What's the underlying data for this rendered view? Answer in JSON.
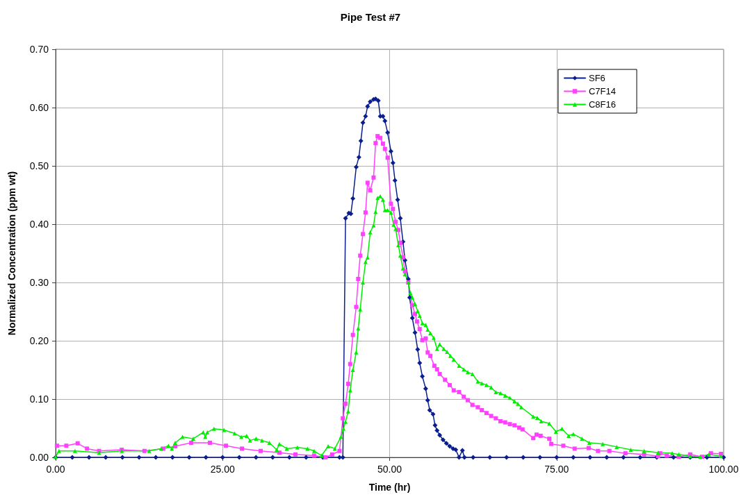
{
  "chart_data": {
    "type": "line",
    "title": "Pipe Test #7",
    "xlabel": "Time (hr)",
    "ylabel": "Normalized Concentration (ppm wt)",
    "xlim": [
      0,
      100
    ],
    "xticks": [
      {
        "value": 0,
        "label": "0.00"
      },
      {
        "value": 25,
        "label": "25.00"
      },
      {
        "value": 50,
        "label": "50.00"
      },
      {
        "value": 75,
        "label": "75.00"
      },
      {
        "value": 100,
        "label": "100.00"
      }
    ],
    "ylim": [
      0,
      0.7
    ],
    "yticks": [
      {
        "value": 0,
        "label": "0.00"
      },
      {
        "value": 0.1,
        "label": "0.10"
      },
      {
        "value": 0.2,
        "label": "0.20"
      },
      {
        "value": 0.3,
        "label": "0.30"
      },
      {
        "value": 0.4,
        "label": "0.40"
      },
      {
        "value": 0.5,
        "label": "0.50"
      },
      {
        "value": 0.6,
        "label": "0.60"
      },
      {
        "value": 0.7,
        "label": "0.70"
      }
    ],
    "grid": true,
    "legend": "top right",
    "line_style": "solid",
    "series": [
      {
        "name": "SF6",
        "color": "#0a1f8f",
        "marker": "diamond",
        "x": [
          0,
          2.5,
          5,
          7.5,
          10,
          12.5,
          15,
          17.5,
          20,
          22.5,
          25,
          27.5,
          30,
          32.5,
          35,
          37.5,
          40,
          42.5,
          43.0,
          43.4,
          43.9,
          44.2,
          44.5,
          45.0,
          45.4,
          45.7,
          46.0,
          46.4,
          46.7,
          47.1,
          47.6,
          47.9,
          48.3,
          48.6,
          49.0,
          49.3,
          49.7,
          50.2,
          50.5,
          50.8,
          51.2,
          51.6,
          52.0,
          52.3,
          52.8,
          53.0,
          53.4,
          53.8,
          54.2,
          54.5,
          54.9,
          55.4,
          55.7,
          56.0,
          56.5,
          56.8,
          57.1,
          57.5,
          58.0,
          58.5,
          59.0,
          59.5,
          59.9,
          60.4,
          60.9,
          61.2,
          62.5,
          65,
          67.5,
          70,
          72.5,
          75,
          77.5,
          80,
          82.5,
          85,
          87.5,
          90,
          92.5,
          95,
          97.5,
          100
        ],
        "values": [
          0,
          0,
          0,
          0,
          0,
          0,
          0,
          0,
          0,
          0,
          0,
          0,
          0,
          0,
          0,
          0,
          0,
          0,
          0,
          0.41,
          0.419,
          0.418,
          0.444,
          0.498,
          0.515,
          0.543,
          0.574,
          0.585,
          0.602,
          0.61,
          0.614,
          0.615,
          0.612,
          0.585,
          0.585,
          0.577,
          0.557,
          0.525,
          0.505,
          0.475,
          0.442,
          0.41,
          0.37,
          0.338,
          0.306,
          0.274,
          0.239,
          0.214,
          0.185,
          0.162,
          0.139,
          0.118,
          0.098,
          0.081,
          0.074,
          0.055,
          0.046,
          0.038,
          0.03,
          0.024,
          0.019,
          0.015,
          0.013,
          0,
          0.012,
          0,
          0,
          0,
          0,
          0,
          0,
          0,
          0,
          0,
          0,
          0,
          0,
          0,
          0,
          0,
          0,
          0
        ]
      },
      {
        "name": "C7F14",
        "color": "#ff40ff",
        "marker": "square",
        "x": [
          0.2,
          1.6,
          3.3,
          4.7,
          6.5,
          9.9,
          13.3,
          16.1,
          17.9,
          20.3,
          23.1,
          25.5,
          27.9,
          30.7,
          33.5,
          35.9,
          38.7,
          40.4,
          41.4,
          42.5,
          43.0,
          43.4,
          43.8,
          44.1,
          44.5,
          45.0,
          45.3,
          45.6,
          46.0,
          46.4,
          46.7,
          47.1,
          47.6,
          47.9,
          48.2,
          48.6,
          49.0,
          49.3,
          49.7,
          50.2,
          50.5,
          50.9,
          51.3,
          51.6,
          52.0,
          52.3,
          52.8,
          53.4,
          53.8,
          54.1,
          54.5,
          54.9,
          55.4,
          55.7,
          56.1,
          56.7,
          57.1,
          57.5,
          58.3,
          59.0,
          59.6,
          60.4,
          61.1,
          61.7,
          62.4,
          63.2,
          63.8,
          64.5,
          65.2,
          65.9,
          66.6,
          67.3,
          68.0,
          68.7,
          69.4,
          69.9,
          71.5,
          72.0,
          72.6,
          73.9,
          74.2,
          76.0,
          77.7,
          79.8,
          81.2,
          82.9,
          85.3,
          88.1,
          90.2,
          90.5,
          91.5,
          93.3,
          95.0,
          96.8,
          98.1,
          99.6
        ],
        "values": [
          0.02,
          0.02,
          0.024,
          0.015,
          0.011,
          0.013,
          0.011,
          0.015,
          0.019,
          0.025,
          0.025,
          0.02,
          0.015,
          0.011,
          0.008,
          0.005,
          0.003,
          0,
          0.005,
          0.011,
          0.067,
          0.092,
          0.126,
          0.16,
          0.21,
          0.258,
          0.306,
          0.346,
          0.383,
          0.42,
          0.471,
          0.458,
          0.48,
          0.539,
          0.551,
          0.548,
          0.538,
          0.529,
          0.514,
          0.435,
          0.426,
          0.404,
          0.39,
          0.368,
          0.343,
          0.319,
          0.3,
          0.261,
          0.246,
          0.233,
          0.22,
          0.201,
          0.204,
          0.18,
          0.174,
          0.157,
          0.151,
          0.143,
          0.133,
          0.124,
          0.115,
          0.112,
          0.104,
          0.098,
          0.09,
          0.086,
          0.081,
          0.076,
          0.071,
          0.067,
          0.062,
          0.06,
          0.057,
          0.055,
          0.051,
          0.048,
          0.033,
          0.039,
          0.037,
          0.032,
          0.023,
          0.02,
          0.015,
          0.016,
          0.011,
          0.011,
          0.007,
          0.005,
          0.002,
          0.007,
          0.003,
          0.001,
          0.005,
          0.001,
          0.007,
          0.006
        ]
      },
      {
        "name": "C8F16",
        "color": "#00ee00",
        "marker": "triangle",
        "x": [
          0,
          0.5,
          2.9,
          6.5,
          9.9,
          14.0,
          15.8,
          16.9,
          17.4,
          17.9,
          19.0,
          20.6,
          22.1,
          22.4,
          22.7,
          23.7,
          25.2,
          26.8,
          27.8,
          28.6,
          29.1,
          30.0,
          30.9,
          32.0,
          33.1,
          33.5,
          34.6,
          36.2,
          37.7,
          38.7,
          39.8,
          40.8,
          41.8,
          42.7,
          43.1,
          43.4,
          43.8,
          44.1,
          44.5,
          45.0,
          45.3,
          45.6,
          46.0,
          46.4,
          46.7,
          47.1,
          47.6,
          47.9,
          48.2,
          48.6,
          49.0,
          49.3,
          49.7,
          50.2,
          50.6,
          50.9,
          51.3,
          51.6,
          52.0,
          52.3,
          52.8,
          53.1,
          53.4,
          53.8,
          54.2,
          54.5,
          54.9,
          55.4,
          55.7,
          56.1,
          56.6,
          57.1,
          57.5,
          58.1,
          58.6,
          59.1,
          59.6,
          60.4,
          61.1,
          61.7,
          62.4,
          63.2,
          63.8,
          64.5,
          65.2,
          65.9,
          66.6,
          67.3,
          68.0,
          68.7,
          69.2,
          69.7,
          71.5,
          72.1,
          72.7,
          73.9,
          74.9,
          75.8,
          76.8,
          77.5,
          78.8,
          79.9,
          81.9,
          84.0,
          86.1,
          88.1,
          90.2,
          92.3,
          93.3,
          95.0,
          96.5,
          97.8,
          99.6
        ],
        "values": [
          0.001,
          0.011,
          0.011,
          0.008,
          0.011,
          0.011,
          0.015,
          0.02,
          0.015,
          0.025,
          0.035,
          0.032,
          0.043,
          0.035,
          0.043,
          0.049,
          0.047,
          0.041,
          0.035,
          0.037,
          0.029,
          0.032,
          0.029,
          0.025,
          0.013,
          0.023,
          0.015,
          0.017,
          0.015,
          0.011,
          0.003,
          0.019,
          0.015,
          0.035,
          0.049,
          0.061,
          0.079,
          0.115,
          0.15,
          0.18,
          0.221,
          0.254,
          0.3,
          0.335,
          0.343,
          0.386,
          0.398,
          0.421,
          0.445,
          0.448,
          0.442,
          0.424,
          0.424,
          0.42,
          0.399,
          0.392,
          0.364,
          0.346,
          0.324,
          0.314,
          0.3,
          0.282,
          0.274,
          0.263,
          0.251,
          0.243,
          0.23,
          0.227,
          0.219,
          0.213,
          0.205,
          0.186,
          0.194,
          0.186,
          0.181,
          0.174,
          0.168,
          0.157,
          0.151,
          0.146,
          0.143,
          0.13,
          0.127,
          0.124,
          0.12,
          0.112,
          0.11,
          0.106,
          0.102,
          0.096,
          0.092,
          0.086,
          0.07,
          0.068,
          0.062,
          0.058,
          0.044,
          0.049,
          0.037,
          0.04,
          0.032,
          0.025,
          0.023,
          0.018,
          0.013,
          0.011,
          0.008,
          0.007,
          0.005,
          0.002,
          0.001,
          0.005,
          0.002
        ]
      }
    ]
  }
}
